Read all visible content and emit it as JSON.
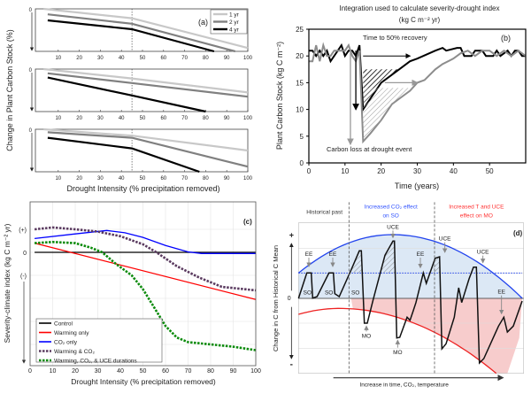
{
  "chart_data": [
    {
      "panel": "(a)",
      "type": "line",
      "ylabel": "Change in Plant Carbon Stock (%)",
      "xlabel": "Drought Intensity (% precipitation removed)",
      "xticks": [
        10,
        20,
        30,
        40,
        50,
        60,
        70,
        80,
        90,
        100
      ],
      "ytick": "0",
      "xlim": [
        0,
        100
      ],
      "ylim": [
        -100,
        0
      ],
      "vline_x": 45,
      "legend": [
        "1 yr",
        "2 yr",
        "4 yr"
      ],
      "colors": [
        "#c8c8c8",
        "#808080",
        "#000000"
      ],
      "subplots": [
        {
          "series": [
            {
              "name": "1 yr",
              "points": [
                [
                  3,
                  0
                ],
                [
                  45,
                  -22
                ],
                [
                  100,
                  -92
                ]
              ]
            },
            {
              "name": "2 yr",
              "points": [
                [
                  5,
                  -13
                ],
                [
                  45,
                  -35
                ],
                [
                  94,
                  -100
                ]
              ]
            },
            {
              "name": "4 yr",
              "points": [
                [
                  5,
                  -27
                ],
                [
                  45,
                  -48
                ],
                [
                  84,
                  -100
                ]
              ]
            }
          ]
        },
        {
          "series": [
            {
              "name": "1 yr",
              "points": [
                [
                  3,
                  0
                ],
                [
                  45,
                  -22
                ],
                [
                  100,
                  -55
                ]
              ]
            },
            {
              "name": "2 yr",
              "points": [
                [
                  5,
                  -10
                ],
                [
                  45,
                  -33
                ],
                [
                  100,
                  -65
                ]
              ]
            },
            {
              "name": "4 yr",
              "points": [
                [
                  5,
                  -20
                ],
                [
                  45,
                  -62
                ],
                [
                  80,
                  -100
                ]
              ]
            }
          ]
        },
        {
          "series": [
            {
              "name": "1 yr",
              "points": [
                [
                  3,
                  0
                ],
                [
                  45,
                  -15
                ],
                [
                  100,
                  -50
                ]
              ]
            },
            {
              "name": "2 yr",
              "points": [
                [
                  5,
                  -7
                ],
                [
                  45,
                  -20
                ],
                [
                  100,
                  -88
                ]
              ]
            },
            {
              "name": "4 yr",
              "points": [
                [
                  5,
                  -20
                ],
                [
                  45,
                  -45
                ],
                [
                  77,
                  -100
                ]
              ]
            }
          ]
        }
      ]
    },
    {
      "panel": "(b)",
      "type": "line",
      "title": "Integration used to calculate severity-drought index",
      "subtitle": "(kg C m⁻² yr)",
      "ylabel": "Plant Carbon Stock (kg C m⁻²)",
      "xlabel": "Time (years)",
      "xlim": [
        0,
        60
      ],
      "ylim": [
        0,
        25
      ],
      "xticks": [
        0,
        10,
        20,
        30,
        40,
        50
      ],
      "yticks": [
        0,
        5,
        10,
        15,
        20,
        25
      ],
      "annotations": [
        "Time to 50% recovery",
        "Carbon loss at drought event"
      ],
      "series": [
        {
          "color": "#000000",
          "points": [
            [
              0,
              21
            ],
            [
              1,
              21
            ],
            [
              2,
              20
            ],
            [
              3,
              21
            ],
            [
              4,
              20
            ],
            [
              5,
              21
            ],
            [
              6,
              19
            ],
            [
              7,
              20
            ],
            [
              8,
              21
            ],
            [
              9,
              22
            ],
            [
              10,
              20
            ],
            [
              11,
              21
            ],
            [
              12,
              21
            ],
            [
              13,
              20
            ],
            [
              14,
              22
            ],
            [
              15,
              10
            ],
            [
              16,
              11
            ],
            [
              18,
              13
            ],
            [
              20,
              15
            ],
            [
              22,
              16
            ],
            [
              25,
              17.5
            ],
            [
              28,
              19
            ],
            [
              30,
              19.5
            ],
            [
              35,
              21
            ],
            [
              37,
              21.5
            ],
            [
              38,
              21
            ],
            [
              41,
              21.5
            ],
            [
              42,
              21.5
            ],
            [
              43,
              20
            ],
            [
              45,
              20
            ],
            [
              46,
              21
            ],
            [
              48,
              21
            ],
            [
              49,
              20
            ],
            [
              51,
              20
            ],
            [
              52,
              21
            ],
            [
              53,
              20
            ],
            [
              55,
              21
            ],
            [
              56,
              20
            ],
            [
              57,
              21
            ],
            [
              58,
              21
            ],
            [
              59,
              20
            ],
            [
              60,
              20
            ]
          ]
        },
        {
          "color": "#8c8c8c",
          "points": [
            [
              0,
              19
            ],
            [
              1,
              19
            ],
            [
              2,
              22
            ],
            [
              3,
              19
            ],
            [
              4,
              22
            ],
            [
              5,
              20
            ],
            [
              6,
              20
            ],
            [
              7,
              21
            ],
            [
              9,
              21
            ],
            [
              10,
              21
            ],
            [
              11,
              22
            ],
            [
              12,
              20
            ],
            [
              13,
              19
            ],
            [
              14,
              21
            ],
            [
              15,
              4
            ],
            [
              17,
              5.5
            ],
            [
              20,
              8
            ],
            [
              23,
              11
            ],
            [
              26,
              12.5
            ],
            [
              28,
              13.5
            ],
            [
              30,
              15
            ],
            [
              32,
              15.5
            ],
            [
              35,
              17.5
            ],
            [
              37,
              18.5
            ],
            [
              40,
              19.5
            ],
            [
              42,
              20.5
            ],
            [
              44,
              21
            ],
            [
              46,
              20
            ],
            [
              48,
              21
            ],
            [
              50,
              21
            ],
            [
              52,
              20
            ],
            [
              54,
              21
            ],
            [
              56,
              20
            ],
            [
              58,
              21
            ],
            [
              60,
              20
            ]
          ]
        }
      ]
    },
    {
      "panel": "(c)",
      "type": "line",
      "ylabel": "Severity-climate index (kg C m⁻² yr)",
      "xlabel": "Drought Intensity (% precipitation removed)",
      "xlim": [
        0,
        100
      ],
      "xticks": [
        0,
        10,
        20,
        30,
        40,
        50,
        60,
        70,
        80,
        90,
        100
      ],
      "yticklabels": [
        "(+)",
        "0",
        "(-)"
      ],
      "series": [
        {
          "name": "Control",
          "color": "#000000",
          "style": "solid",
          "points": [
            [
              2,
              0
            ],
            [
              100,
              0
            ]
          ]
        },
        {
          "name": "Warming only",
          "color": "#ff0000",
          "style": "solid",
          "points": [
            [
              2,
              0.4
            ],
            [
              100,
              -2.05
            ]
          ]
        },
        {
          "name": "CO₂ only",
          "color": "#0000ff",
          "style": "solid",
          "points": [
            [
              2,
              0.6
            ],
            [
              20,
              0.8
            ],
            [
              34,
              0.95
            ],
            [
              42,
              0.85
            ],
            [
              50,
              0.65
            ],
            [
              60,
              0.3
            ],
            [
              70,
              0.02
            ],
            [
              76,
              -0.05
            ],
            [
              100,
              -0.05
            ]
          ]
        },
        {
          "name": "Warming & CO₂",
          "color": "#5a3a5f",
          "style": "dashed",
          "points": [
            [
              2,
              1
            ],
            [
              10,
              1.08
            ],
            [
              20,
              1
            ],
            [
              30,
              0.9
            ],
            [
              40,
              0.7
            ],
            [
              50,
              0.35
            ],
            [
              56,
              0
            ],
            [
              65,
              -0.6
            ],
            [
              75,
              -1.1
            ],
            [
              85,
              -1.5
            ],
            [
              100,
              -1.65
            ]
          ]
        },
        {
          "name": "Warming, CO₂, & UCE durations",
          "color": "#0a8a0a",
          "style": "dashed",
          "points": [
            [
              2,
              0.4
            ],
            [
              10,
              0.45
            ],
            [
              20,
              0.4
            ],
            [
              27,
              0.2
            ],
            [
              32,
              0
            ],
            [
              38,
              -0.5
            ],
            [
              45,
              -1
            ],
            [
              50,
              -1.6
            ],
            [
              55,
              -2.4
            ],
            [
              60,
              -3.2
            ],
            [
              65,
              -3.7
            ],
            [
              70,
              -3.9
            ],
            [
              80,
              -4.0
            ],
            [
              90,
              -4.1
            ],
            [
              100,
              -4.25
            ]
          ]
        }
      ]
    },
    {
      "panel": "(d)",
      "type": "diagram",
      "ylabel": "Change in C from Historical C Mean",
      "xlabel": "Increase in time, CO₂, temperature",
      "yticklabels": [
        "+",
        "0",
        "-"
      ],
      "periods": [
        {
          "label": "Historical past",
          "color": "#333333"
        },
        {
          "label": "Increased CO₂ effect",
          "label2": "on SO",
          "color": "#3355ff"
        },
        {
          "label": "Increased T and UCE",
          "label2": "effect on MO",
          "color": "#ff3333"
        }
      ],
      "labels": {
        "ee": "EE",
        "uce": "UCE",
        "so": "SO",
        "mo": "MO"
      },
      "colors": {
        "upper": "#2244ee",
        "lower": "#ee2222",
        "upper_fill": "#dce8f5",
        "lower_fill": "#f7cccc"
      }
    }
  ]
}
